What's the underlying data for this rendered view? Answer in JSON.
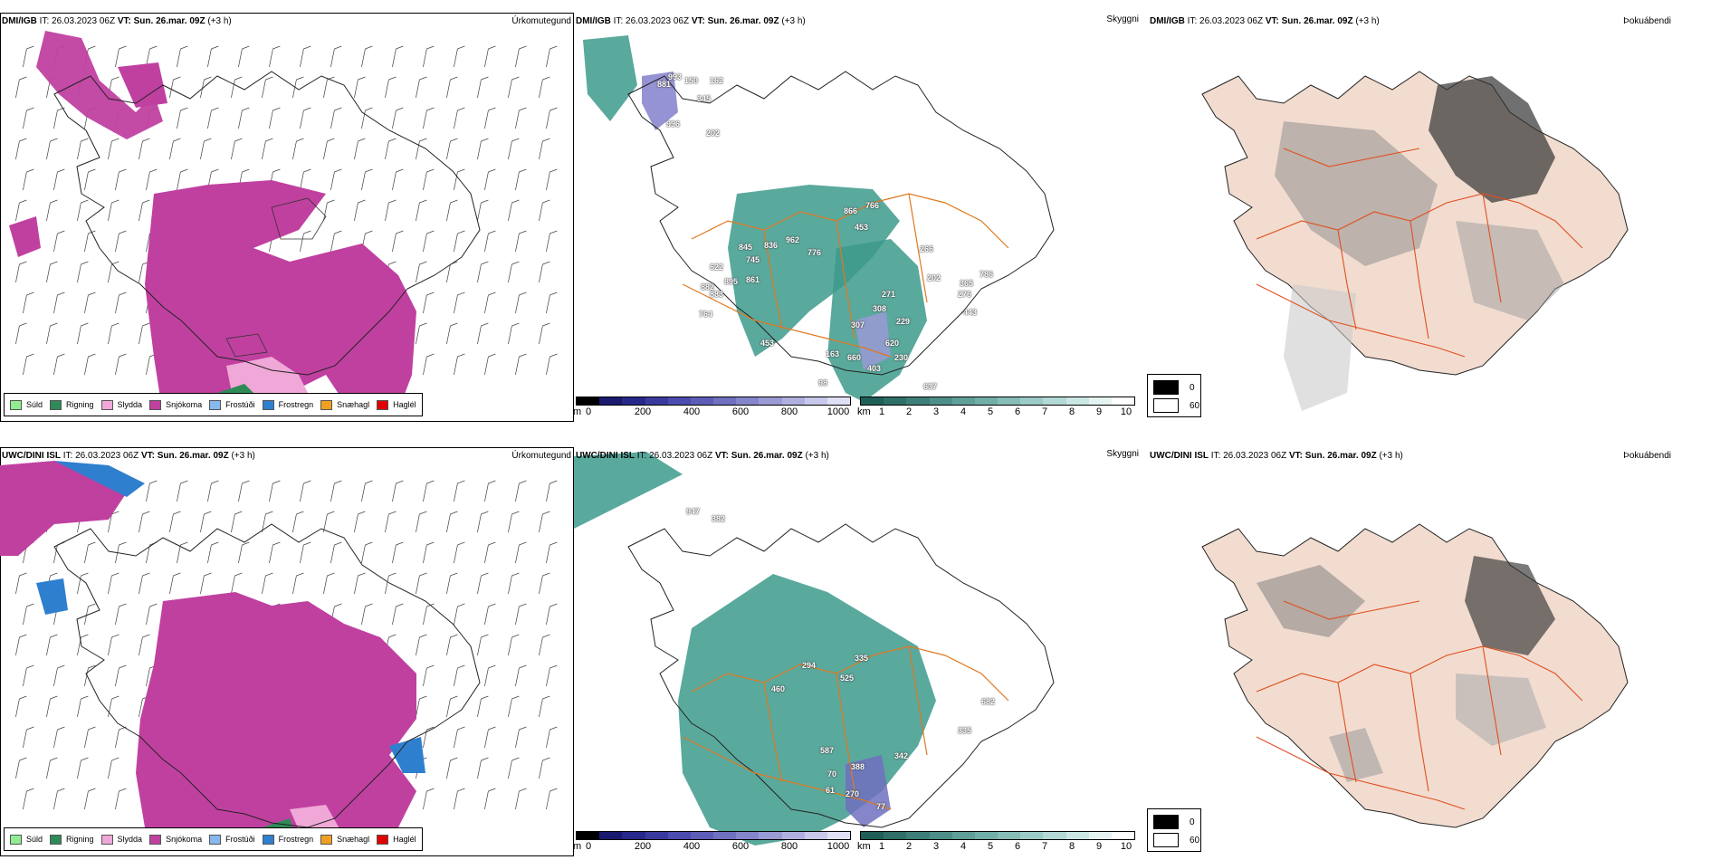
{
  "rows": [
    {
      "model": "DMI/IGB",
      "precip_panel": {
        "model_label": "DMI/IGB",
        "init": "IT: 26.03.2023 06Z",
        "vt_label": "VT: Sun. 26.mar. 09Z",
        "lead": "(+3 h)",
        "type_label": "Úrkomutegund"
      },
      "cloud_panel": {
        "model_label": "DMI/IGB",
        "init": "IT: 26.03.2023 06Z",
        "vt_label": "VT: Sun. 26.mar. 09Z",
        "lead": "(+3 h)",
        "type_label": "Skyggni",
        "cloud_values": [
          "881",
          "993",
          "150",
          "162",
          "996",
          "202",
          "345",
          "453",
          "866",
          "766",
          "962",
          "845",
          "836",
          "745",
          "776",
          "622",
          "895",
          "882",
          "883",
          "861",
          "266",
          "202",
          "365",
          "276",
          "786",
          "271",
          "308",
          "229",
          "764",
          "307",
          "620",
          "443",
          "453",
          "163",
          "660",
          "403",
          "230",
          "637",
          "98"
        ]
      },
      "fog_panel": {
        "model_label": "DMI/IGB",
        "init": "IT: 26.03.2023 06Z",
        "vt_label": "VT: Sun. 26.mar. 09Z",
        "lead": "(+3 h)",
        "type_label": "Þokuábendi"
      }
    },
    {
      "model": "UWC/DINI ISL",
      "precip_panel": {
        "model_label": "UWC/DINI ISL",
        "init": "IT: 26.03.2023 06Z",
        "vt_label": "VT: Sun. 26.mar. 09Z",
        "lead": "(+3 h)",
        "type_label": "Úrkomutegund"
      },
      "cloud_panel": {
        "model_label": "UWC/DINI ISL",
        "init": "IT: 26.03.2023 06Z",
        "vt_label": "VT: Sun. 26.mar. 09Z",
        "lead": "(+3 h)",
        "type_label": "Skyggni",
        "cloud_values": [
          "947",
          "382",
          "294",
          "335",
          "460",
          "525",
          "682",
          "335",
          "587",
          "342",
          "388",
          "70",
          "61",
          "270",
          "77"
        ]
      },
      "fog_panel": {
        "model_label": "UWC/DINI ISL",
        "init": "IT: 26.03.2023 06Z",
        "vt_label": "VT: Sun. 26.mar. 09Z",
        "lead": "(+3 h)",
        "type_label": "Þokuábendi"
      }
    }
  ],
  "precip_legend": [
    {
      "label": "Súld",
      "color": "#90ee90"
    },
    {
      "label": "Rigning",
      "color": "#2e8b57"
    },
    {
      "label": "Slydda",
      "color": "#f0a8d8"
    },
    {
      "label": "Snjókoma",
      "color": "#c040a0"
    },
    {
      "label": "Frostúði",
      "color": "#87b8ee"
    },
    {
      "label": "Frostregn",
      "color": "#2f7fcf"
    },
    {
      "label": "Snæhagl",
      "color": "#f0a020"
    },
    {
      "label": "Haglél",
      "color": "#e00000"
    }
  ],
  "cloud_base_scale": {
    "unit": "m",
    "ticks": [
      "0",
      "200",
      "400",
      "600",
      "800",
      "1000"
    ],
    "colors": [
      "#000000",
      "#191970",
      "#27288a",
      "#3a3a9e",
      "#4b4bb0",
      "#5d5db8",
      "#7070c0",
      "#8585cb",
      "#9a9ad5",
      "#b0b0e0",
      "#c8c8ec",
      "#e0e0f5"
    ]
  },
  "visibility_scale": {
    "unit": "km",
    "ticks": [
      "1",
      "2",
      "3",
      "4",
      "5",
      "6",
      "7",
      "8",
      "9",
      "10"
    ],
    "colors": [
      "#1f5f58",
      "#2f6f68",
      "#3d7f78",
      "#4d8f88",
      "#5f9f98",
      "#72aea8",
      "#86bdb7",
      "#9bcbc6",
      "#b2d9d5",
      "#cbe7e4",
      "#e5f4f2",
      "#ffffff"
    ]
  },
  "fog_legend": [
    {
      "label": "0",
      "color": "#000000"
    },
    {
      "label": "60",
      "color": "#ffffff"
    }
  ]
}
